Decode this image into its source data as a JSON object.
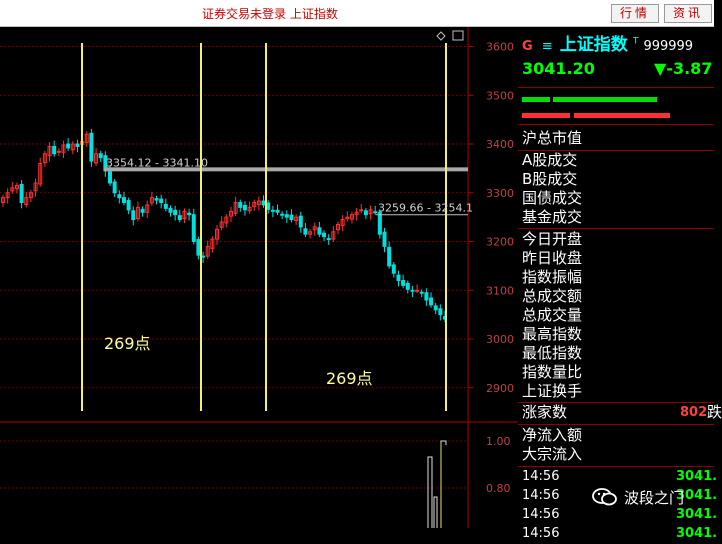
{
  "toolbar": {
    "status_text": "证券交易未登录  上证指数",
    "quote_button": "行情",
    "info_button": "资讯"
  },
  "stock": {
    "flag": "G",
    "menu_glyph": "≡",
    "name": "上证指数",
    "name_superscript": "T",
    "code": "999999",
    "price": "3041.20",
    "change_arrow": "▼",
    "change": "-3.87"
  },
  "panel": {
    "labels_group1": [
      "沪总市值"
    ],
    "labels_group2": [
      "A股成交",
      "B股成交",
      "国债成交",
      "基金成交"
    ],
    "labels_group3": [
      "今日开盘",
      "昨日收盘",
      "指数振幅",
      "总成交额",
      "总成交量",
      "最高指数",
      "最低指数",
      "指数量比",
      "上证换手"
    ],
    "rising_label": "涨家数",
    "rising_value": "802",
    "rising_suffix": "跌",
    "labels_group4": [
      "净流入额",
      "大宗流入"
    ],
    "ticks": [
      {
        "time": "14:56",
        "price": "3041."
      },
      {
        "time": "14:56",
        "price": "3041."
      },
      {
        "time": "14:56",
        "price": "3041."
      },
      {
        "time": "14:56",
        "price": "3041."
      }
    ]
  },
  "watermark": "波段之门",
  "colors": {
    "up": "#ff3030",
    "down": "#00e0e0",
    "grid": "#8b0000",
    "axis": "#b00000",
    "vline": "#f0f06a",
    "hline": "#a9a9a9"
  },
  "chart_data": {
    "type": "candlestick",
    "y_ticks": [
      "3600",
      "3500",
      "3400",
      "3300",
      "3200",
      "3100",
      "3000",
      "2900"
    ],
    "ylim": [
      2840,
      3640
    ],
    "lower_ticks": [
      "1.00",
      "0.80"
    ],
    "annotations": {
      "range1": "3354.12 - 3341.10",
      "range2": "3259.66 - 3254.1",
      "points1": "269点",
      "points2": "269点"
    },
    "closes": [
      3290,
      3300,
      3310,
      3315,
      3280,
      3290,
      3300,
      3320,
      3360,
      3380,
      3395,
      3380,
      3385,
      3398,
      3392,
      3400,
      3395,
      3405,
      3420,
      3365,
      3380,
      3372,
      3345,
      3320,
      3300,
      3290,
      3280,
      3265,
      3245,
      3270,
      3260,
      3275,
      3290,
      3285,
      3280,
      3268,
      3260,
      3255,
      3245,
      3262,
      3255,
      3200,
      3172,
      3168,
      3190,
      3205,
      3225,
      3240,
      3250,
      3262,
      3280,
      3270,
      3265,
      3270,
      3280,
      3283,
      3275,
      3266,
      3262,
      3260,
      3255,
      3250,
      3245,
      3250,
      3230,
      3215,
      3220,
      3230,
      3215,
      3210,
      3205,
      3220,
      3235,
      3245,
      3250,
      3255,
      3260,
      3265,
      3255,
      3265,
      3260,
      3215,
      3190,
      3150,
      3135,
      3120,
      3110,
      3102,
      3098,
      3100,
      3095,
      3080,
      3070,
      3060,
      3050,
      3041
    ]
  }
}
